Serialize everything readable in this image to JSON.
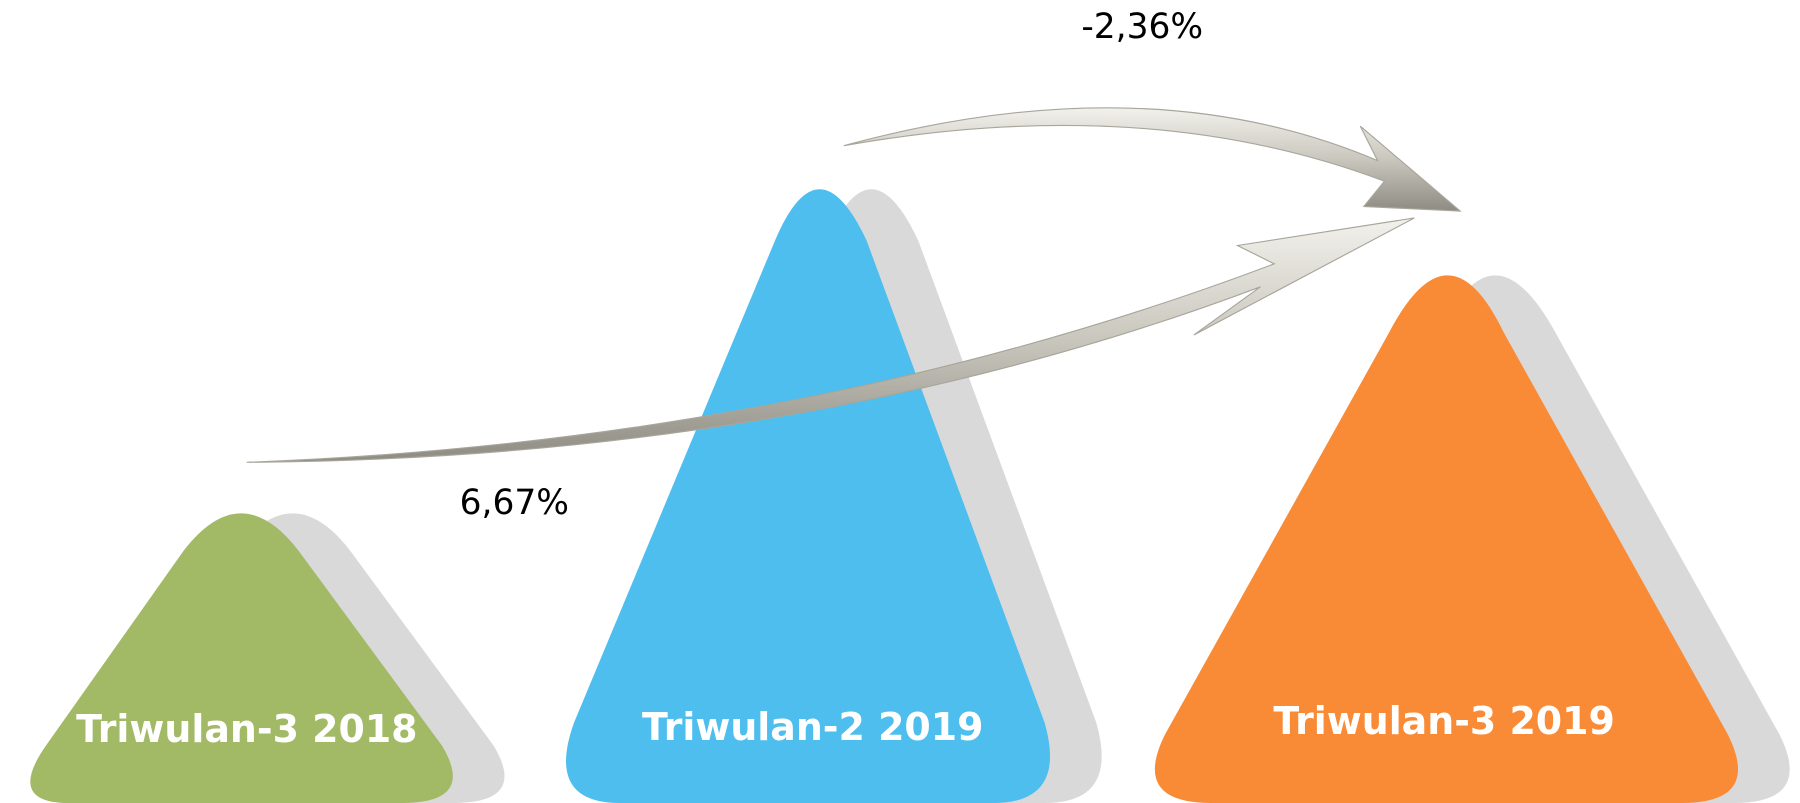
{
  "periods": [
    "Triwulan-3 2018",
    "Triwulan-2 2019",
    "Triwulan-3 2019"
  ],
  "changes": {
    "year_on_year": "6,67%",
    "quarter_to_quarter": "-2,36%"
  }
}
